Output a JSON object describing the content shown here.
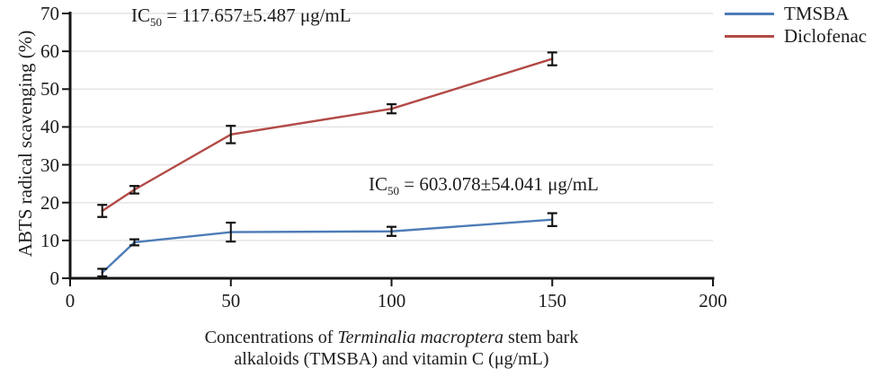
{
  "colors": {
    "axis": "#161616",
    "grid": "#e4e4e4",
    "error_bar": "#111111",
    "text": "#1c1c1c",
    "tmsba_blue": "#4d7cb7",
    "diclofenac_red": "#b24a46"
  },
  "chart_data": {
    "type": "line",
    "title": "",
    "ylabel": "ABTS radical scavenging (%)",
    "xlabel": {
      "pre": "Concentrations of ",
      "italic": "Terminalia macroptera",
      "post": " stem bark",
      "line2": "alkaloids (TMSBA) and vitamin C (μg/mL)"
    },
    "xlim": [
      0,
      200
    ],
    "ylim": [
      0,
      70
    ],
    "xticks": [
      0,
      50,
      100,
      150,
      200
    ],
    "yticks": [
      0,
      10,
      20,
      30,
      40,
      50,
      60,
      70
    ],
    "grid": "horizontal",
    "legend_position": "top-right",
    "x": [
      10,
      20,
      50,
      100,
      150
    ],
    "series": [
      {
        "name": "TMSBA",
        "color": "#4d7cb7",
        "values": [
          1.5,
          9.5,
          12.2,
          12.4,
          15.5
        ],
        "errors": [
          1.0,
          0.8,
          2.5,
          1.2,
          1.7
        ]
      },
      {
        "name": "Diclofenac",
        "color": "#b24a46",
        "values": [
          17.8,
          23.4,
          38.0,
          44.8,
          58.0
        ],
        "errors": [
          1.6,
          1.0,
          2.3,
          1.2,
          1.7
        ]
      }
    ],
    "annotations": [
      {
        "prefix": "IC",
        "sub": "50",
        "text": " = 117.657±5.487 μg/mL"
      },
      {
        "prefix": "IC",
        "sub": "50",
        "text": " = 603.078±54.041 μg/mL"
      }
    ]
  }
}
